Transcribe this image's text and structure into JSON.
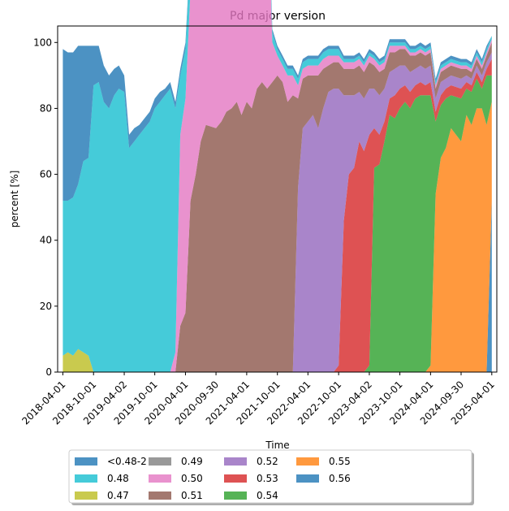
{
  "chart_data": {
    "type": "area",
    "title": "Pd major version",
    "xlabel": "Time",
    "ylabel": "percent [%]",
    "ylim": [
      0,
      105
    ],
    "yticks": [
      0,
      20,
      40,
      60,
      80,
      100
    ],
    "xticks": [
      "2018-04-01",
      "2018-10-01",
      "2019-04-02",
      "2019-10-01",
      "2020-04-01",
      "2020-09-30",
      "2021-04-01",
      "2021-10-01",
      "2022-04-01",
      "2022-10-01",
      "2023-04-02",
      "2023-10-01",
      "2024-04-01",
      "2024-09-30",
      "2025-04-01"
    ],
    "legend_position": "bottom",
    "x": [
      "2018-04-01",
      "2018-05-01",
      "2018-06-01",
      "2018-07-01",
      "2018-08-01",
      "2018-09-01",
      "2018-10-01",
      "2018-11-01",
      "2018-12-01",
      "2019-01-01",
      "2019-02-01",
      "2019-03-01",
      "2019-04-02",
      "2019-05-01",
      "2019-06-01",
      "2019-07-01",
      "2019-08-01",
      "2019-09-01",
      "2019-10-01",
      "2019-11-01",
      "2019-12-01",
      "2020-01-01",
      "2020-02-01",
      "2020-03-01",
      "2020-04-01",
      "2020-05-01",
      "2020-06-01",
      "2020-07-01",
      "2020-08-01",
      "2020-09-30",
      "2020-11-01",
      "2020-12-01",
      "2021-01-01",
      "2021-02-01",
      "2021-03-01",
      "2021-04-01",
      "2021-05-01",
      "2021-06-01",
      "2021-07-01",
      "2021-08-01",
      "2021-09-01",
      "2021-10-01",
      "2021-11-01",
      "2021-12-01",
      "2022-01-01",
      "2022-02-01",
      "2022-03-01",
      "2022-04-01",
      "2022-05-01",
      "2022-06-01",
      "2022-07-01",
      "2022-08-01",
      "2022-09-01",
      "2022-10-01",
      "2022-11-01",
      "2022-12-01",
      "2023-01-01",
      "2023-02-01",
      "2023-03-01",
      "2023-04-02",
      "2023-05-01",
      "2023-06-01",
      "2023-07-01",
      "2023-08-01",
      "2023-09-01",
      "2023-10-01",
      "2023-11-01",
      "2023-12-01",
      "2024-01-01",
      "2024-02-01",
      "2024-03-01",
      "2024-04-01",
      "2024-05-01",
      "2024-06-01",
      "2024-07-01",
      "2024-08-01",
      "2024-09-30",
      "2024-11-01",
      "2024-12-01",
      "2025-01-01",
      "2025-02-01",
      "2025-03-01",
      "2025-04-01"
    ],
    "series": [
      {
        "name": "0.56",
        "color": "#1f77b4",
        "values": [
          0,
          0,
          0,
          0,
          0,
          0,
          0,
          0,
          0,
          0,
          0,
          0,
          0,
          0,
          0,
          0,
          0,
          0,
          0,
          0,
          0,
          0,
          0,
          0,
          0,
          0,
          0,
          0,
          0,
          0,
          0,
          0,
          0,
          0,
          0,
          0,
          0,
          0,
          0,
          0,
          0,
          0,
          0,
          0,
          0,
          0,
          0,
          0,
          0,
          0,
          0,
          0,
          0,
          0,
          0,
          0,
          0,
          0,
          0,
          0,
          0,
          0,
          0,
          0,
          0,
          0,
          0,
          0,
          0,
          0,
          0,
          0,
          0,
          0,
          0,
          0,
          0,
          0,
          0,
          0,
          0,
          0,
          52
        ]
      },
      {
        "name": "0.55",
        "color": "#ff7f0e",
        "values": [
          0,
          0,
          0,
          0,
          0,
          0,
          0,
          0,
          0,
          0,
          0,
          0,
          0,
          0,
          0,
          0,
          0,
          0,
          0,
          0,
          0,
          0,
          0,
          0,
          0,
          0,
          0,
          0,
          0,
          0,
          0,
          0,
          0,
          0,
          0,
          0,
          0,
          0,
          0,
          0,
          0,
          0,
          0,
          0,
          0,
          0,
          0,
          0,
          0,
          0,
          0,
          0,
          0,
          0,
          0,
          0,
          0,
          0,
          0,
          0,
          0,
          0,
          0,
          0,
          0,
          0,
          0,
          0,
          0,
          0,
          0,
          2,
          54,
          65,
          68,
          74,
          70,
          78,
          75,
          80,
          80,
          75,
          30
        ]
      },
      {
        "name": "0.54",
        "color": "#2ca02c",
        "values": [
          0,
          0,
          0,
          0,
          0,
          0,
          0,
          0,
          0,
          0,
          0,
          0,
          0,
          0,
          0,
          0,
          0,
          0,
          0,
          0,
          0,
          0,
          0,
          0,
          0,
          0,
          0,
          0,
          0,
          0,
          0,
          0,
          0,
          0,
          0,
          0,
          0,
          0,
          0,
          0,
          0,
          0,
          0,
          0,
          0,
          0,
          0,
          0,
          0,
          0,
          0,
          0,
          0,
          0,
          0,
          0,
          0,
          0,
          0,
          2,
          62,
          63,
          70,
          78,
          77,
          80,
          82,
          80,
          83,
          84,
          84,
          82,
          22,
          16,
          15,
          10,
          13,
          8,
          10,
          9,
          6,
          15,
          8
        ]
      },
      {
        "name": "0.53",
        "color": "#d62728",
        "values": [
          0,
          0,
          0,
          0,
          0,
          0,
          0,
          0,
          0,
          0,
          0,
          0,
          0,
          0,
          0,
          0,
          0,
          0,
          0,
          0,
          0,
          0,
          0,
          0,
          0,
          0,
          0,
          0,
          0,
          0,
          0,
          0,
          0,
          0,
          0,
          0,
          0,
          0,
          0,
          0,
          0,
          0,
          0,
          0,
          0,
          0,
          0,
          0,
          0,
          0,
          0,
          0,
          0,
          2,
          46,
          60,
          62,
          70,
          67,
          70,
          12,
          9,
          6,
          5,
          7,
          6,
          5,
          5,
          4,
          4,
          3,
          4,
          3,
          3,
          3,
          3,
          3,
          2,
          2,
          2,
          2,
          2,
          5
        ]
      },
      {
        "name": "0.52",
        "color": "#9467bd",
        "values": [
          0,
          0,
          0,
          0,
          0,
          0,
          0,
          0,
          0,
          0,
          0,
          0,
          0,
          0,
          0,
          0,
          0,
          0,
          0,
          0,
          0,
          0,
          0,
          0,
          0,
          0,
          0,
          0,
          0,
          0,
          0,
          0,
          0,
          0,
          0,
          0,
          0,
          0,
          0,
          0,
          0,
          0,
          0,
          0,
          0,
          56,
          74,
          76,
          78,
          74,
          80,
          85,
          86,
          84,
          38,
          24,
          22,
          15,
          16,
          14,
          12,
          12,
          10,
          8,
          8,
          7,
          6,
          6,
          5,
          5,
          5,
          5,
          4,
          4,
          3,
          3,
          3,
          2,
          2,
          2,
          2,
          2,
          2
        ]
      },
      {
        "name": "0.51",
        "color": "#8c564b",
        "values": [
          0,
          0,
          0,
          0,
          0,
          0,
          0,
          0,
          0,
          0,
          0,
          0,
          0,
          0,
          0,
          0,
          0,
          0,
          0,
          0,
          0,
          0,
          0,
          14,
          18,
          52,
          60,
          70,
          75,
          74,
          76,
          79,
          80,
          82,
          78,
          82,
          80,
          86,
          88,
          86,
          88,
          90,
          88,
          82,
          84,
          27,
          15,
          14,
          12,
          16,
          12,
          8,
          8,
          8,
          8,
          8,
          8,
          8,
          8,
          8,
          7,
          7,
          6,
          6,
          5,
          5,
          5,
          5,
          4,
          4,
          4,
          4,
          3,
          3,
          3,
          3,
          3,
          2,
          2,
          2,
          2,
          2,
          3
        ]
      },
      {
        "name": "0.50",
        "color": "#e377c2",
        "values": [
          0,
          0,
          0,
          0,
          0,
          0,
          0,
          0,
          0,
          0,
          0,
          0,
          0,
          0,
          0,
          0,
          0,
          0,
          0,
          0,
          0,
          0,
          6,
          58,
          65,
          64,
          66,
          69,
          68,
          71,
          72,
          70,
          68,
          66,
          65,
          68,
          70,
          72,
          70,
          68,
          12,
          6,
          5,
          8,
          6,
          4,
          3,
          3,
          3,
          3,
          3,
          3,
          2,
          2,
          2,
          2,
          2,
          2,
          2,
          2,
          2,
          2,
          2,
          2,
          2,
          1,
          1,
          1,
          1,
          1,
          1,
          1,
          1,
          1,
          1,
          1,
          1,
          1,
          1,
          1,
          1,
          1,
          1
        ]
      },
      {
        "name": "0.49",
        "color": "#7f7f7f",
        "values": [
          0,
          0,
          0,
          0,
          0,
          0,
          0,
          0,
          0,
          0,
          0,
          0,
          0,
          0,
          0,
          0,
          0,
          0,
          0,
          0,
          0,
          0,
          0,
          0,
          0,
          0,
          0,
          0,
          0,
          0,
          0,
          0,
          0,
          0,
          0,
          0,
          0,
          0,
          0,
          0,
          0,
          0,
          0,
          0,
          0,
          0,
          0,
          0,
          0,
          0,
          0,
          0,
          0,
          0,
          0,
          0,
          0,
          0,
          0,
          0,
          0,
          0,
          0,
          0,
          0,
          0,
          0,
          0,
          0,
          0,
          0,
          0,
          0,
          0,
          0,
          0,
          0,
          0,
          0,
          0,
          0,
          0,
          0
        ]
      },
      {
        "name": "0.47",
        "color": "#bcbd22",
        "values": [
          5,
          6,
          5,
          7,
          6,
          5,
          0,
          0,
          0,
          0,
          0,
          0,
          0,
          0,
          0,
          0,
          0,
          0,
          0,
          0,
          0,
          0,
          0,
          0,
          0,
          0,
          0,
          0,
          0,
          0,
          0,
          0,
          0,
          0,
          0,
          0,
          0,
          0,
          0,
          0,
          0,
          0,
          0,
          0,
          0,
          0,
          0,
          0,
          0,
          0,
          0,
          0,
          0,
          0,
          0,
          0,
          0,
          0,
          0,
          0,
          0,
          0,
          0,
          0,
          0,
          0,
          0,
          0,
          0,
          0,
          0,
          0,
          0,
          0,
          0,
          0,
          0,
          0,
          0,
          0,
          0,
          0,
          0
        ]
      },
      {
        "name": "0.48",
        "color": "#17becf",
        "values": [
          47,
          46,
          48,
          50,
          58,
          60,
          87,
          88,
          82,
          80,
          84,
          86,
          85,
          68,
          70,
          72,
          74,
          76,
          80,
          82,
          84,
          86,
          74,
          18,
          15,
          12,
          10,
          8,
          7,
          6,
          6,
          5,
          5,
          4,
          4,
          4,
          3,
          3,
          3,
          3,
          3,
          2,
          2,
          2,
          2,
          2,
          2,
          2,
          2,
          2,
          2,
          2,
          2,
          2,
          1,
          1,
          1,
          1,
          1,
          1,
          1,
          1,
          1,
          1,
          1,
          1,
          1,
          1,
          1,
          1,
          1,
          1,
          1,
          1,
          1,
          1,
          1,
          1,
          1,
          1,
          1,
          1,
          1
        ]
      },
      {
        "name": "<0.48-2",
        "color": "#1f77b4",
        "values": [
          46,
          45,
          44,
          42,
          35,
          34,
          12,
          11,
          11,
          10,
          8,
          7,
          5,
          4,
          4,
          3,
          3,
          3,
          3,
          3,
          2,
          2,
          2,
          2,
          2,
          1,
          1,
          1,
          1,
          1,
          1,
          1,
          1,
          1,
          1,
          1,
          1,
          1,
          1,
          1,
          1,
          1,
          1,
          1,
          1,
          1,
          1,
          1,
          1,
          1,
          1,
          1,
          1,
          1,
          1,
          1,
          1,
          1,
          1,
          1,
          1,
          1,
          1,
          1,
          1,
          1,
          1,
          1,
          1,
          1,
          1,
          1,
          1,
          1,
          1,
          1,
          1,
          1,
          1,
          1,
          1,
          1,
          0
        ]
      }
    ],
    "legend": [
      {
        "name": "<0.48-2",
        "color": "#1f77b4"
      },
      {
        "name": "0.48",
        "color": "#17becf"
      },
      {
        "name": "0.47",
        "color": "#bcbd22"
      },
      {
        "name": "0.49",
        "color": "#7f7f7f"
      },
      {
        "name": "0.50",
        "color": "#e377c2"
      },
      {
        "name": "0.51",
        "color": "#8c564b"
      },
      {
        "name": "0.52",
        "color": "#9467bd"
      },
      {
        "name": "0.53",
        "color": "#d62728"
      },
      {
        "name": "0.54",
        "color": "#2ca02c"
      },
      {
        "name": "0.55",
        "color": "#ff7f0e"
      },
      {
        "name": "0.56",
        "color": "#1f77b4"
      }
    ]
  }
}
